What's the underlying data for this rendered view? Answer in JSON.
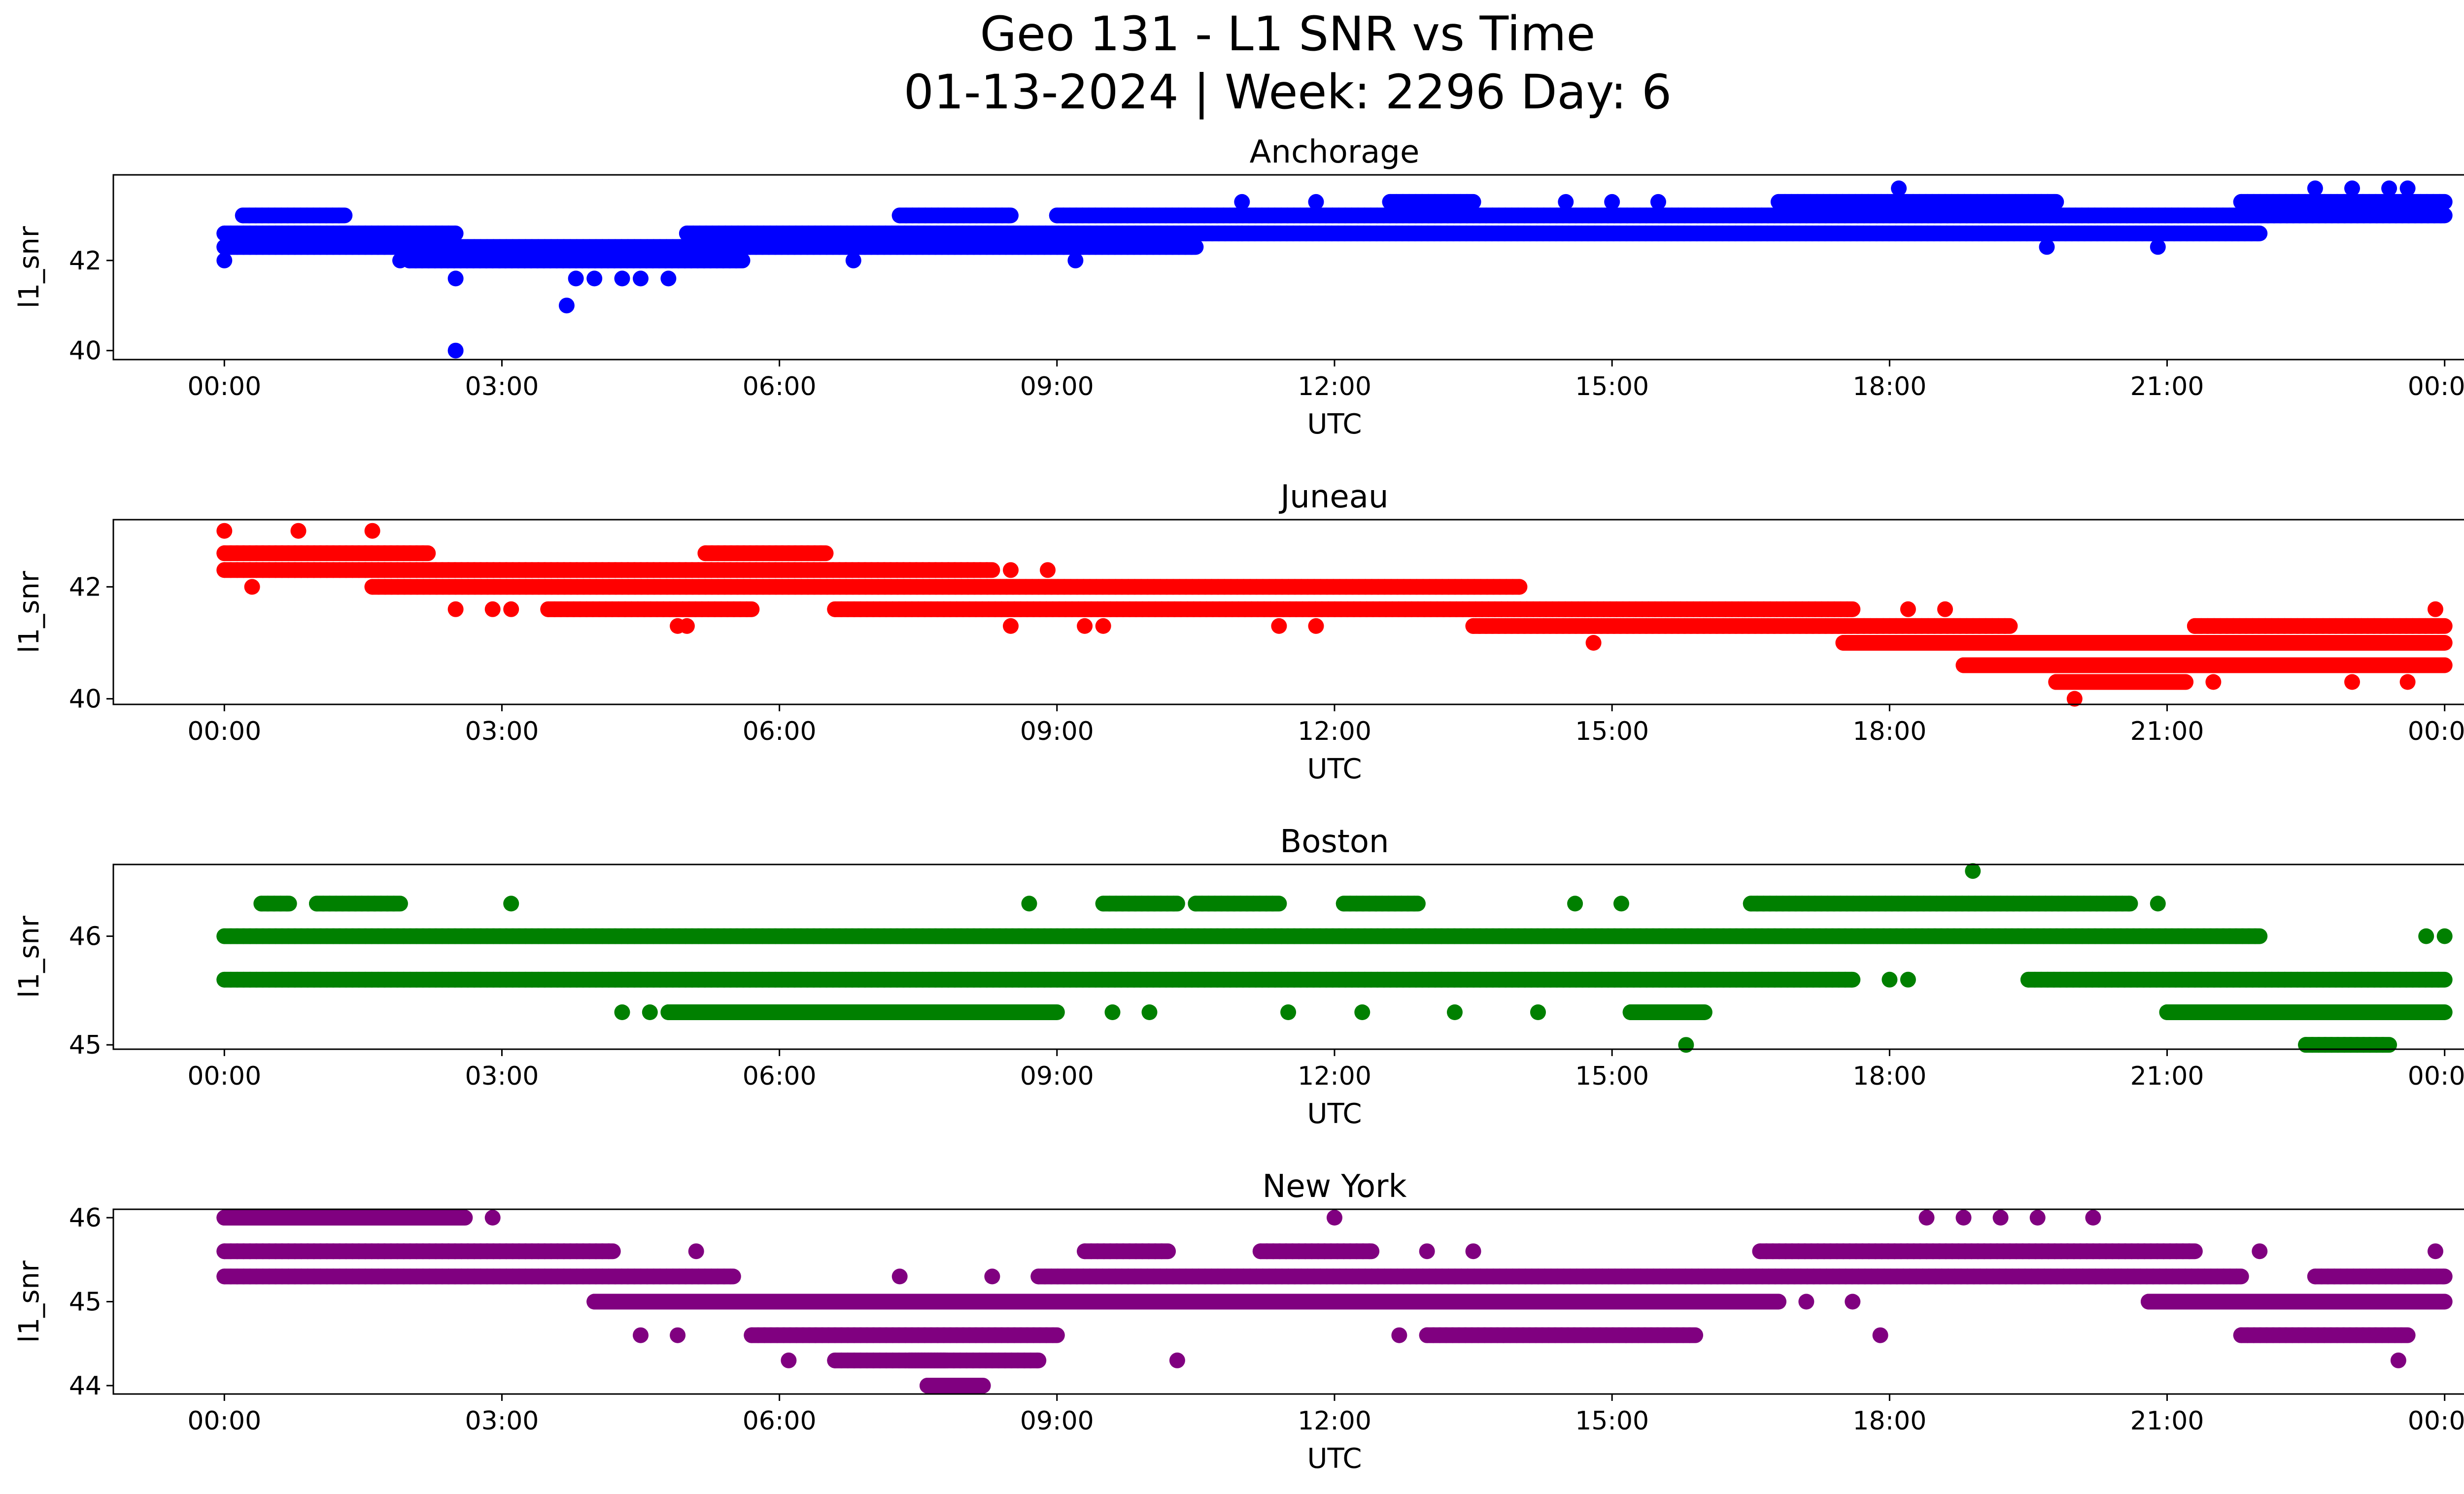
{
  "figure": {
    "title_line1": "Geo 131 - L1 SNR vs Time",
    "title_line2": "01-13-2024 | Week: 2296 Day: 6"
  },
  "chart_data": [
    {
      "type": "scatter",
      "title": "Anchorage",
      "xlabel": "UTC",
      "ylabel": "l1_snr",
      "color": "#0000ff",
      "xlim_hours": [
        -1.2,
        25.2
      ],
      "ylim": [
        39.8,
        43.9
      ],
      "xticks_hours": [
        0,
        3,
        6,
        9,
        12,
        15,
        18,
        21,
        24
      ],
      "xtick_labels": [
        "00:00",
        "03:00",
        "06:00",
        "09:00",
        "12:00",
        "15:00",
        "18:00",
        "21:00",
        "00:00"
      ],
      "yticks": [
        40,
        42
      ],
      "bands": [
        {
          "y": 42.6,
          "ranges": [
            [
              0.0,
              2.5
            ],
            [
              5.0,
              11.0
            ],
            [
              11.0,
              19.0
            ],
            [
              19.0,
              22.0
            ]
          ]
        },
        {
          "y": 42.3,
          "ranges": [
            [
              0.0,
              10.5
            ]
          ]
        },
        {
          "y": 42.0,
          "ranges": [
            [
              2.0,
              5.6
            ]
          ]
        },
        {
          "y": 43.0,
          "ranges": [
            [
              0.2,
              1.3
            ],
            [
              7.3,
              8.5
            ],
            [
              9.0,
              24.0
            ]
          ]
        },
        {
          "y": 43.3,
          "ranges": [
            [
              12.6,
              13.5
            ],
            [
              16.8,
              19.8
            ],
            [
              21.8,
              24.0
            ]
          ]
        }
      ],
      "points": [
        [
          0.0,
          42.0
        ],
        [
          1.9,
          42.0
        ],
        [
          2.5,
          41.6
        ],
        [
          2.5,
          40.0
        ],
        [
          3.8,
          41.6
        ],
        [
          4.0,
          41.6
        ],
        [
          4.3,
          41.6
        ],
        [
          4.5,
          41.6
        ],
        [
          4.8,
          41.6
        ],
        [
          3.7,
          41.0
        ],
        [
          6.8,
          42.0
        ],
        [
          9.2,
          42.0
        ],
        [
          11.0,
          43.3
        ],
        [
          11.8,
          43.3
        ],
        [
          14.5,
          43.3
        ],
        [
          15.0,
          43.3
        ],
        [
          15.5,
          43.3
        ],
        [
          18.1,
          43.6
        ],
        [
          22.6,
          43.6
        ],
        [
          23.0,
          43.6
        ],
        [
          23.4,
          43.6
        ],
        [
          23.6,
          43.6
        ],
        [
          19.7,
          42.3
        ],
        [
          20.9,
          42.3
        ]
      ]
    },
    {
      "type": "scatter",
      "title": "Juneau",
      "xlabel": "UTC",
      "ylabel": "l1_snr",
      "color": "#ff0000",
      "xlim_hours": [
        -1.2,
        25.2
      ],
      "ylim": [
        39.9,
        43.2
      ],
      "xticks_hours": [
        0,
        3,
        6,
        9,
        12,
        15,
        18,
        21,
        24
      ],
      "xtick_labels": [
        "00:00",
        "03:00",
        "06:00",
        "09:00",
        "12:00",
        "15:00",
        "18:00",
        "21:00",
        "00:00"
      ],
      "yticks": [
        40,
        42
      ],
      "bands": [
        {
          "y": 42.6,
          "ranges": [
            [
              0.0,
              2.2
            ],
            [
              5.2,
              6.5
            ]
          ]
        },
        {
          "y": 42.3,
          "ranges": [
            [
              0.0,
              8.3
            ]
          ]
        },
        {
          "y": 42.0,
          "ranges": [
            [
              1.6,
              14.0
            ]
          ]
        },
        {
          "y": 41.6,
          "ranges": [
            [
              3.5,
              5.7
            ],
            [
              6.6,
              17.6
            ]
          ]
        },
        {
          "y": 41.3,
          "ranges": [
            [
              13.5,
              19.3
            ],
            [
              21.3,
              24.0
            ]
          ]
        },
        {
          "y": 41.0,
          "ranges": [
            [
              17.5,
              24.0
            ]
          ]
        },
        {
          "y": 40.6,
          "ranges": [
            [
              18.8,
              24.0
            ]
          ]
        },
        {
          "y": 40.3,
          "ranges": [
            [
              19.8,
              21.2
            ]
          ]
        }
      ],
      "points": [
        [
          0.0,
          43.0
        ],
        [
          0.8,
          43.0
        ],
        [
          1.6,
          43.0
        ],
        [
          0.3,
          42.0
        ],
        [
          2.5,
          41.6
        ],
        [
          2.9,
          41.6
        ],
        [
          3.1,
          41.6
        ],
        [
          4.9,
          41.3
        ],
        [
          5.0,
          41.3
        ],
        [
          8.5,
          41.3
        ],
        [
          8.5,
          42.3
        ],
        [
          8.9,
          42.3
        ],
        [
          9.3,
          41.3
        ],
        [
          9.5,
          41.3
        ],
        [
          11.4,
          41.3
        ],
        [
          11.8,
          41.3
        ],
        [
          20.0,
          40.0
        ],
        [
          21.5,
          40.3
        ],
        [
          23.0,
          40.3
        ],
        [
          23.6,
          40.3
        ],
        [
          23.9,
          41.6
        ],
        [
          14.8,
          41.0
        ],
        [
          18.6,
          41.6
        ],
        [
          18.2,
          41.6
        ]
      ]
    },
    {
      "type": "scatter",
      "title": "Boston",
      "xlabel": "UTC",
      "ylabel": "l1_snr",
      "color": "#008000",
      "xlim_hours": [
        -1.2,
        25.2
      ],
      "ylim": [
        44.96,
        46.66
      ],
      "xticks_hours": [
        0,
        3,
        6,
        9,
        12,
        15,
        18,
        21,
        24
      ],
      "xtick_labels": [
        "00:00",
        "03:00",
        "06:00",
        "09:00",
        "12:00",
        "15:00",
        "18:00",
        "21:00",
        "00:00"
      ],
      "yticks": [
        45,
        46
      ],
      "bands": [
        {
          "y": 46.0,
          "ranges": [
            [
              0.0,
              22.0
            ]
          ]
        },
        {
          "y": 45.6,
          "ranges": [
            [
              0.0,
              17.6
            ],
            [
              19.5,
              24.0
            ]
          ]
        },
        {
          "y": 45.3,
          "ranges": [
            [
              4.8,
              9.0
            ],
            [
              15.2,
              16.0
            ],
            [
              21.0,
              24.0
            ]
          ]
        },
        {
          "y": 46.3,
          "ranges": [
            [
              0.4,
              0.7
            ],
            [
              1.0,
              1.9
            ],
            [
              9.5,
              10.3
            ],
            [
              10.5,
              11.4
            ],
            [
              12.1,
              12.9
            ],
            [
              16.5,
              20.6
            ]
          ]
        },
        {
          "y": 45.0,
          "ranges": [
            [
              22.5,
              23.4
            ]
          ]
        }
      ],
      "points": [
        [
          3.1,
          46.3
        ],
        [
          14.6,
          46.3
        ],
        [
          15.1,
          46.3
        ],
        [
          20.9,
          46.3
        ],
        [
          8.7,
          46.3
        ],
        [
          18.9,
          46.6
        ],
        [
          15.8,
          45.0
        ],
        [
          23.8,
          46.0
        ],
        [
          24.0,
          46.0
        ],
        [
          4.3,
          45.3
        ],
        [
          4.6,
          45.3
        ],
        [
          9.6,
          45.3
        ],
        [
          10.0,
          45.3
        ],
        [
          11.5,
          45.3
        ],
        [
          12.3,
          45.3
        ],
        [
          13.3,
          45.3
        ],
        [
          14.2,
          45.3
        ],
        [
          18.0,
          45.6
        ],
        [
          18.2,
          45.6
        ]
      ]
    },
    {
      "type": "scatter",
      "title": "New York",
      "xlabel": "UTC",
      "ylabel": "l1_snr",
      "color": "#800080",
      "xlim_hours": [
        -1.2,
        25.2
      ],
      "ylim": [
        43.9,
        46.1
      ],
      "xticks_hours": [
        0,
        3,
        6,
        9,
        12,
        15,
        18,
        21,
        24
      ],
      "xtick_labels": [
        "00:00",
        "03:00",
        "06:00",
        "09:00",
        "12:00",
        "15:00",
        "18:00",
        "21:00",
        "00:00"
      ],
      "yticks": [
        44,
        45,
        46
      ],
      "bands": [
        {
          "y": 46.0,
          "ranges": [
            [
              0.0,
              2.6
            ]
          ]
        },
        {
          "y": 45.6,
          "ranges": [
            [
              0.0,
              4.2
            ],
            [
              9.3,
              10.2
            ],
            [
              11.2,
              12.4
            ],
            [
              16.6,
              21.3
            ]
          ]
        },
        {
          "y": 45.3,
          "ranges": [
            [
              0.0,
              5.5
            ],
            [
              8.8,
              21.8
            ],
            [
              22.6,
              24.0
            ]
          ]
        },
        {
          "y": 45.0,
          "ranges": [
            [
              4.0,
              16.8
            ],
            [
              20.8,
              24.0
            ]
          ]
        },
        {
          "y": 44.6,
          "ranges": [
            [
              5.7,
              9.0
            ],
            [
              13.0,
              15.9
            ],
            [
              21.8,
              23.6
            ]
          ]
        },
        {
          "y": 44.3,
          "ranges": [
            [
              6.6,
              7.8
            ],
            [
              7.4,
              8.8
            ]
          ]
        },
        {
          "y": 44.0,
          "ranges": [
            [
              7.6,
              8.2
            ]
          ]
        }
      ],
      "points": [
        [
          12.0,
          46.0
        ],
        [
          18.4,
          46.0
        ],
        [
          18.8,
          46.0
        ],
        [
          19.2,
          46.0
        ],
        [
          19.6,
          46.0
        ],
        [
          20.2,
          46.0
        ],
        [
          2.9,
          46.0
        ],
        [
          5.1,
          45.6
        ],
        [
          13.0,
          45.6
        ],
        [
          13.5,
          45.6
        ],
        [
          4.5,
          44.6
        ],
        [
          4.9,
          44.6
        ],
        [
          12.7,
          44.6
        ],
        [
          10.3,
          44.3
        ],
        [
          6.1,
          44.3
        ],
        [
          23.5,
          44.3
        ],
        [
          17.9,
          44.6
        ],
        [
          17.1,
          45.0
        ],
        [
          17.6,
          45.0
        ],
        [
          23.9,
          45.6
        ],
        [
          7.3,
          45.3
        ],
        [
          8.3,
          45.3
        ],
        [
          22.0,
          45.6
        ]
      ]
    }
  ]
}
